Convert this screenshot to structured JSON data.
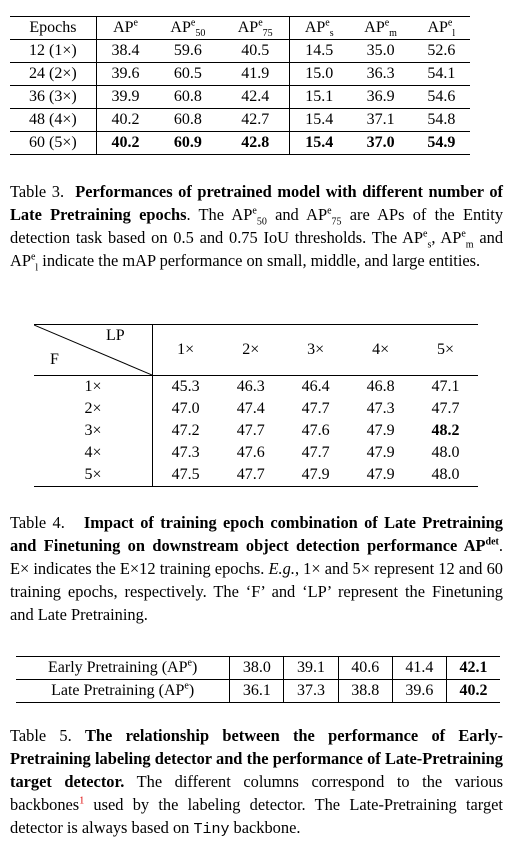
{
  "table3": {
    "headers": [
      "Epochs",
      "AP",
      "AP",
      "AP",
      "AP",
      "AP",
      "AP"
    ],
    "header_sup": [
      "",
      "e",
      "e",
      "e",
      "e",
      "e",
      "e"
    ],
    "header_sub": [
      "",
      "",
      "50",
      "75",
      "s",
      "m",
      "l"
    ],
    "rows": [
      [
        "12 (1×)",
        "38.4",
        "59.6",
        "40.5",
        "14.5",
        "35.0",
        "52.6"
      ],
      [
        "24 (2×)",
        "39.6",
        "60.5",
        "41.9",
        "15.0",
        "36.3",
        "54.1"
      ],
      [
        "36 (3×)",
        "39.9",
        "60.8",
        "42.4",
        "15.1",
        "36.9",
        "54.6"
      ],
      [
        "48 (4×)",
        "40.2",
        "60.8",
        "42.7",
        "15.4",
        "37.1",
        "54.8"
      ],
      [
        "60 (5×)",
        "40.2",
        "60.9",
        "42.8",
        "15.4",
        "37.0",
        "54.9"
      ]
    ]
  },
  "caption3": {
    "label": "Table 3.",
    "bold": "Performances of pretrained model with different number of Late Pretraining epochs",
    "t1": ". The ",
    "ap": "AP",
    "e": "e",
    "s50": "50",
    "and": " and ",
    "s75": "75",
    "t2": " are APs of the Entity detection task based on 0.5 and 0.75 IoU thresholds. The ",
    "ss": "s",
    "comma": ", ",
    "sm": "m",
    "and2": " and ",
    "sl": "l",
    "t3": " indicate the mAP performance on small, middle, and large entities."
  },
  "table4": {
    "corner_col": "LP",
    "corner_row": "F",
    "col_headers": [
      "1×",
      "2×",
      "3×",
      "4×",
      "5×"
    ],
    "row_headers": [
      "1×",
      "2×",
      "3×",
      "4×",
      "5×"
    ],
    "rows": [
      [
        "45.3",
        "46.3",
        "46.4",
        "46.8",
        "47.1"
      ],
      [
        "47.0",
        "47.4",
        "47.7",
        "47.3",
        "47.7"
      ],
      [
        "47.2",
        "47.7",
        "47.6",
        "47.9",
        "48.2"
      ],
      [
        "47.3",
        "47.6",
        "47.7",
        "47.9",
        "48.0"
      ],
      [
        "47.5",
        "47.7",
        "47.9",
        "47.9",
        "48.0"
      ]
    ]
  },
  "caption4": {
    "label": "Table 4.",
    "bold1": "Impact of training epoch combination of Late Pretraining and Finetuning on downstream object detection performance AP",
    "bold_sup": "det",
    "t1": ". E× indicates the E×12 training epochs. ",
    "eg": "E.g.",
    "t2": ", 1× and 5× represent 12 and 60 training epochs, respectively. The ‘F’ and ‘LP’ represent the Finetuning and Late Pretraining."
  },
  "table5": {
    "rows": [
      {
        "label": "Early Pretraining (AP",
        "sup": "e",
        "close": ")",
        "values": [
          "38.0",
          "39.1",
          "40.6",
          "41.4",
          "42.1"
        ]
      },
      {
        "label": "Late Pretraining (AP",
        "sup": "e",
        "close": ")",
        "values": [
          "36.1",
          "37.3",
          "38.8",
          "39.6",
          "40.2"
        ]
      }
    ]
  },
  "caption5": {
    "label": "Table 5.",
    "bold": "The relationship between the performance of Early-Pretraining labeling detector and the performance of Late-Pretraining target detector.",
    "t1": " The different columns correspond to the various backbones",
    "fn": "1",
    "t2": " used by the labeling detector. The Late-Pretraining target detector is always based on ",
    "code": "Tiny",
    "t3": " backbone."
  }
}
